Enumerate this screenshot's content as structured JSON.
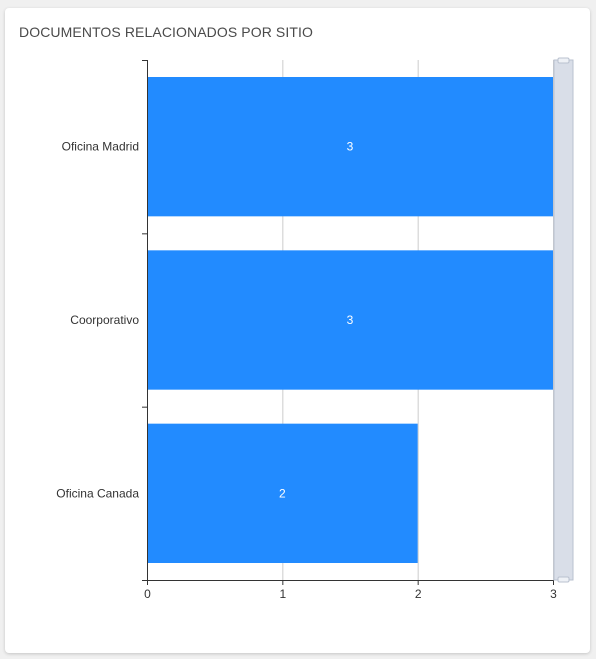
{
  "card": {
    "title": "DOCUMENTOS RELACIONADOS POR SITIO"
  },
  "colors": {
    "bar": "#228bff",
    "grid": "#cccccc",
    "axis": "#333333",
    "scrollbar_track": "#d9dee8",
    "scrollbar_border": "#b9c1cf"
  },
  "chart_data": {
    "type": "bar",
    "orientation": "horizontal",
    "categories": [
      "Oficina Madrid",
      "Coorporativo",
      "Oficina Canada"
    ],
    "values": [
      3,
      3,
      2
    ],
    "x_ticks": [
      "0",
      "1",
      "2",
      "3"
    ],
    "xlim": [
      0,
      3
    ],
    "title": "DOCUMENTOS RELACIONADOS POR SITIO",
    "xlabel": "",
    "ylabel": "",
    "grid": true,
    "data_labels": true,
    "legend": false
  }
}
